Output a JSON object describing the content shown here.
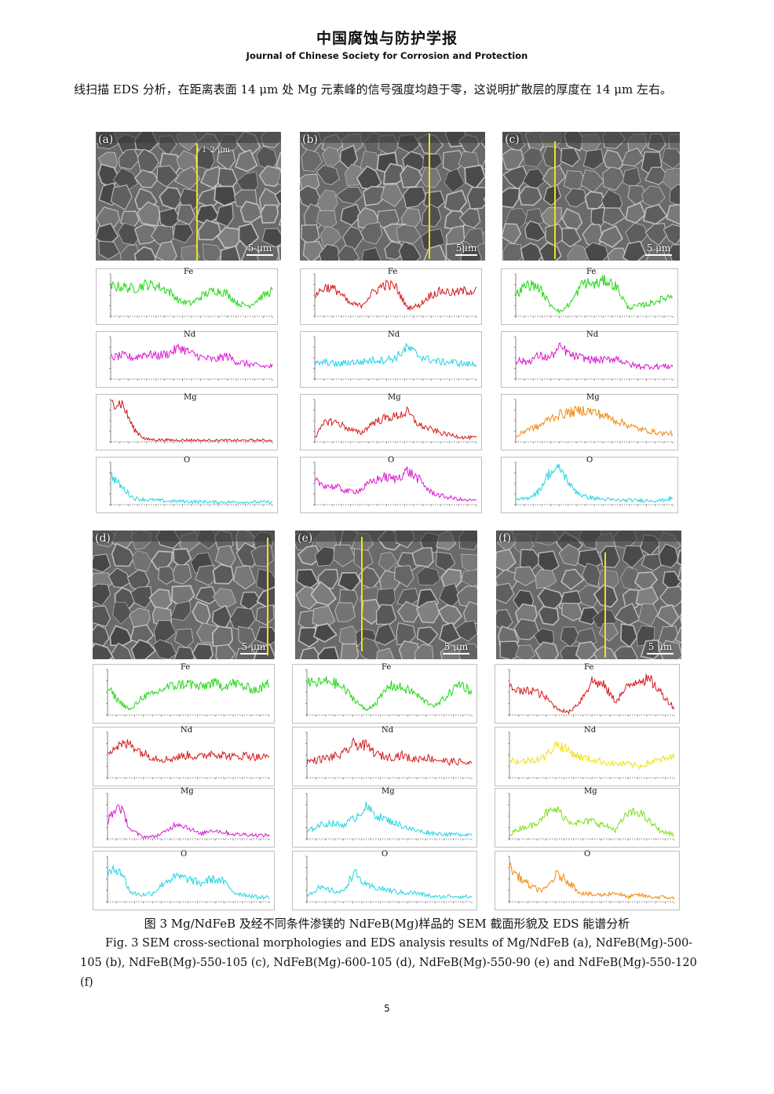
{
  "header": {
    "journal_cn": "中国腐蚀与防护学报",
    "journal_en": "Journal of Chinese Society for Corrosion and Protection"
  },
  "body": {
    "paragraph": "线扫描 EDS 分析，在距离表面 14 μm 处 Mg 元素峰的信号强度均趋于零，这说明扩散层的厚度在 14 μm 左右。"
  },
  "figure": {
    "panels": [
      {
        "label": "(a)",
        "scale": "5 μm",
        "annotation": "2 μm",
        "colors": [
          "#22d615",
          "#e018d8",
          "#cc1414",
          "#1fd5e0"
        ],
        "elements": [
          "Fe",
          "Nd",
          "Mg",
          "O"
        ]
      },
      {
        "label": "(b)",
        "scale": "5μm",
        "colors": [
          "#d41a1a",
          "#22d0e8",
          "#d41a1a",
          "#d81ad0"
        ],
        "elements": [
          "Fe",
          "Nd",
          "Mg",
          "O"
        ]
      },
      {
        "label": "(c)",
        "scale": "5 μm",
        "colors": [
          "#22d615",
          "#d81ad0",
          "#ef8a10",
          "#1fd5e0"
        ],
        "elements": [
          "Fe",
          "Nd",
          "Mg",
          "O"
        ]
      },
      {
        "label": "(d)",
        "scale": "5 μm",
        "colors": [
          "#22d615",
          "#d41a1a",
          "#d81ad0",
          "#1fd5e0"
        ],
        "elements": [
          "Fe",
          "Nd",
          "Mg",
          "O"
        ]
      },
      {
        "label": "(e)",
        "scale": "5 μm",
        "colors": [
          "#22d615",
          "#d41a1a",
          "#1fd5e0",
          "#1fd5e0"
        ],
        "elements": [
          "Fe",
          "Nd",
          "Mg",
          "O"
        ]
      },
      {
        "label": "(f)",
        "scale": "5 μm",
        "colors": [
          "#d41a1a",
          "#f0e014",
          "#7edc1a",
          "#ef8a10"
        ],
        "elements": [
          "Fe",
          "Nd",
          "Mg",
          "O"
        ]
      }
    ],
    "caption_cn": "图 3 Mg/NdFeB 及经不同条件渗镁的 NdFeB(Mg)样品的 SEM 截面形貌及 EDS 能谱分析",
    "caption_en": "Fig. 3 SEM cross-sectional morphologies and EDS analysis results of Mg/NdFeB (a), NdFeB(Mg)-500-105 (b), NdFeB(Mg)-550-105 (c), NdFeB(Mg)-600-105 (d), NdFeB(Mg)-550-90 (e) and NdFeB(Mg)-550-120 (f)"
  },
  "footer": {
    "page_number": "5"
  }
}
